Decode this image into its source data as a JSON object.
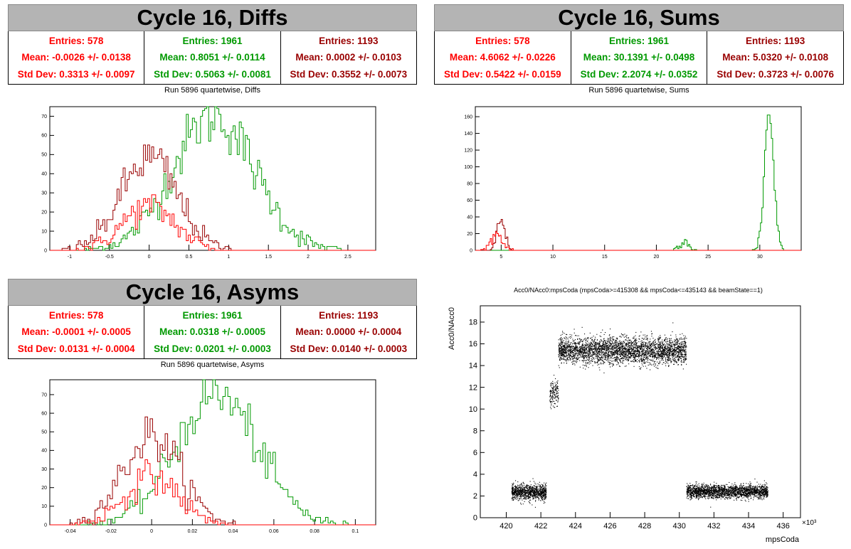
{
  "colors": {
    "red": "#ff0000",
    "green": "#009900",
    "darkred": "#990000",
    "title_bg": "#b4b4b4"
  },
  "panels": {
    "diffs": {
      "title": "Cycle 16, Diffs",
      "subtitle": "Run 5896 quartetwise, Diffs",
      "stats": [
        {
          "entries": "Entries: 578",
          "mean": "Mean: -0.0026 +/- 0.0138",
          "std": "Std Dev: 0.3313 +/- 0.0097",
          "color": "#ff0000"
        },
        {
          "entries": "Entries: 1961",
          "mean": "Mean: 0.8051 +/- 0.0114",
          "std": "Std Dev: 0.5063 +/- 0.0081",
          "color": "#009900"
        },
        {
          "entries": "Entries: 1193",
          "mean": "Mean: 0.0002 +/- 0.0103",
          "std": "Std Dev: 0.3552 +/- 0.0073",
          "color": "#990000"
        }
      ]
    },
    "sums": {
      "title": "Cycle 16, Sums",
      "subtitle": "Run 5896 quartetwise, Sums",
      "stats": [
        {
          "entries": "Entries: 578",
          "mean": "Mean: 4.6062 +/- 0.0226",
          "std": "Std Dev: 0.5422 +/- 0.0159",
          "color": "#ff0000"
        },
        {
          "entries": "Entries: 1961",
          "mean": "Mean: 30.1391 +/- 0.0498",
          "std": "Std Dev: 2.2074 +/- 0.0352",
          "color": "#009900"
        },
        {
          "entries": "Entries: 1193",
          "mean": "Mean: 5.0320 +/- 0.0108",
          "std": "Std Dev: 0.3723 +/- 0.0076",
          "color": "#990000"
        }
      ]
    },
    "asyms": {
      "title": "Cycle 16, Asyms",
      "subtitle": "Run 5896 quartetwise, Asyms",
      "stats": [
        {
          "entries": "Entries: 578",
          "mean": "Mean: -0.0001 +/- 0.0005",
          "std": "Std Dev: 0.0131 +/- 0.0004",
          "color": "#ff0000"
        },
        {
          "entries": "Entries: 1961",
          "mean": "Mean: 0.0318 +/- 0.0005",
          "std": "Std Dev: 0.0201 +/- 0.0003",
          "color": "#009900"
        },
        {
          "entries": "Entries: 1193",
          "mean": "Mean: 0.0000 +/- 0.0004",
          "std": "Std Dev: 0.0140 +/- 0.0003",
          "color": "#990000"
        }
      ]
    },
    "scatter": {
      "title": "Acc0/NAcc0:mpsCoda (mpsCoda>=415308 && mpsCoda<=435143 && beamState==1)"
    }
  },
  "chart_data": [
    {
      "type": "histogram",
      "name": "diffs",
      "xlim": [
        -1.25,
        2.85
      ],
      "ylim": [
        0,
        75
      ],
      "xticks": [
        -1,
        -0.5,
        0,
        0.5,
        1,
        1.5,
        2,
        2.5
      ],
      "xtick_labels": [
        "-1",
        "-0.5",
        "0",
        "0.5",
        "1",
        "1.5",
        "2",
        "2.5"
      ],
      "yticks": [
        0,
        10,
        20,
        30,
        40,
        50,
        60,
        70
      ],
      "series": [
        {
          "color": "#009900",
          "shape": "gauss",
          "mean": 0.81,
          "sigma": 0.51,
          "peak": 70
        },
        {
          "color": "#990000",
          "shape": "gauss",
          "mean": 0.0,
          "sigma": 0.355,
          "peak": 48
        },
        {
          "color": "#ff0000",
          "shape": "gauss",
          "mean": 0.0,
          "sigma": 0.331,
          "peak": 23
        }
      ]
    },
    {
      "type": "histogram",
      "name": "sums",
      "xlim": [
        2.5,
        34
      ],
      "ylim": [
        0,
        172
      ],
      "xticks": [
        5,
        10,
        15,
        20,
        25,
        30
      ],
      "xtick_labels": [
        "5",
        "10",
        "15",
        "20",
        "25",
        "30"
      ],
      "yticks": [
        0,
        20,
        40,
        60,
        80,
        100,
        120,
        140,
        160
      ],
      "series": [
        {
          "color": "#009900",
          "shape": "gauss",
          "mean": 30.9,
          "sigma": 0.45,
          "peak": 165
        },
        {
          "color": "#009900",
          "shape": "gauss",
          "mean": 22.7,
          "sigma": 0.45,
          "peak": 12
        },
        {
          "color": "#990000",
          "shape": "gauss",
          "mean": 5.0,
          "sigma": 0.37,
          "peak": 38
        },
        {
          "color": "#ff0000",
          "shape": "gauss",
          "mean": 4.6,
          "sigma": 0.54,
          "peak": 20
        }
      ]
    },
    {
      "type": "histogram",
      "name": "asyms",
      "xlim": [
        -0.05,
        0.11
      ],
      "ylim": [
        0,
        78
      ],
      "xticks": [
        -0.04,
        -0.02,
        0,
        0.02,
        0.04,
        0.06,
        0.08,
        0.1
      ],
      "xtick_labels": [
        "-0.04",
        "-0.02",
        "0",
        "0.02",
        "0.04",
        "0.06",
        "0.08",
        "0.1"
      ],
      "yticks": [
        0,
        10,
        20,
        30,
        40,
        50,
        60,
        70
      ],
      "series": [
        {
          "color": "#009900",
          "shape": "gauss",
          "mean": 0.032,
          "sigma": 0.02,
          "peak": 70
        },
        {
          "color": "#990000",
          "shape": "gauss",
          "mean": 0.0,
          "sigma": 0.014,
          "peak": 48
        },
        {
          "color": "#ff0000",
          "shape": "gauss",
          "mean": 0.0,
          "sigma": 0.013,
          "peak": 26
        }
      ]
    },
    {
      "type": "scatter",
      "name": "acc0_vs_mpscoda",
      "xlabel": "mpsCoda",
      "ylabel": "Acc0/NAcc0",
      "x_multiplier_label": "×10³",
      "xlim": [
        418.5,
        437.0
      ],
      "ylim": [
        0,
        19.5
      ],
      "xticks": [
        420,
        422,
        424,
        426,
        428,
        430,
        432,
        434,
        436
      ],
      "xtick_labels": [
        "420",
        "422",
        "424",
        "426",
        "428",
        "430",
        "432",
        "434",
        "436"
      ],
      "yticks": [
        0,
        2,
        4,
        6,
        8,
        10,
        12,
        14,
        16,
        18
      ],
      "clusters": [
        {
          "x0": 420.3,
          "x1": 422.3,
          "ymean": 2.4,
          "ysd": 0.35,
          "n": 1000
        },
        {
          "x0": 422.5,
          "x1": 423.0,
          "ymean": 11.5,
          "ysd": 0.6,
          "n": 150
        },
        {
          "x0": 423.0,
          "x1": 430.4,
          "ymean": 15.4,
          "ysd": 0.6,
          "n": 3400
        },
        {
          "x0": 430.4,
          "x1": 435.1,
          "ymean": 2.45,
          "ysd": 0.3,
          "n": 2100
        }
      ]
    }
  ]
}
